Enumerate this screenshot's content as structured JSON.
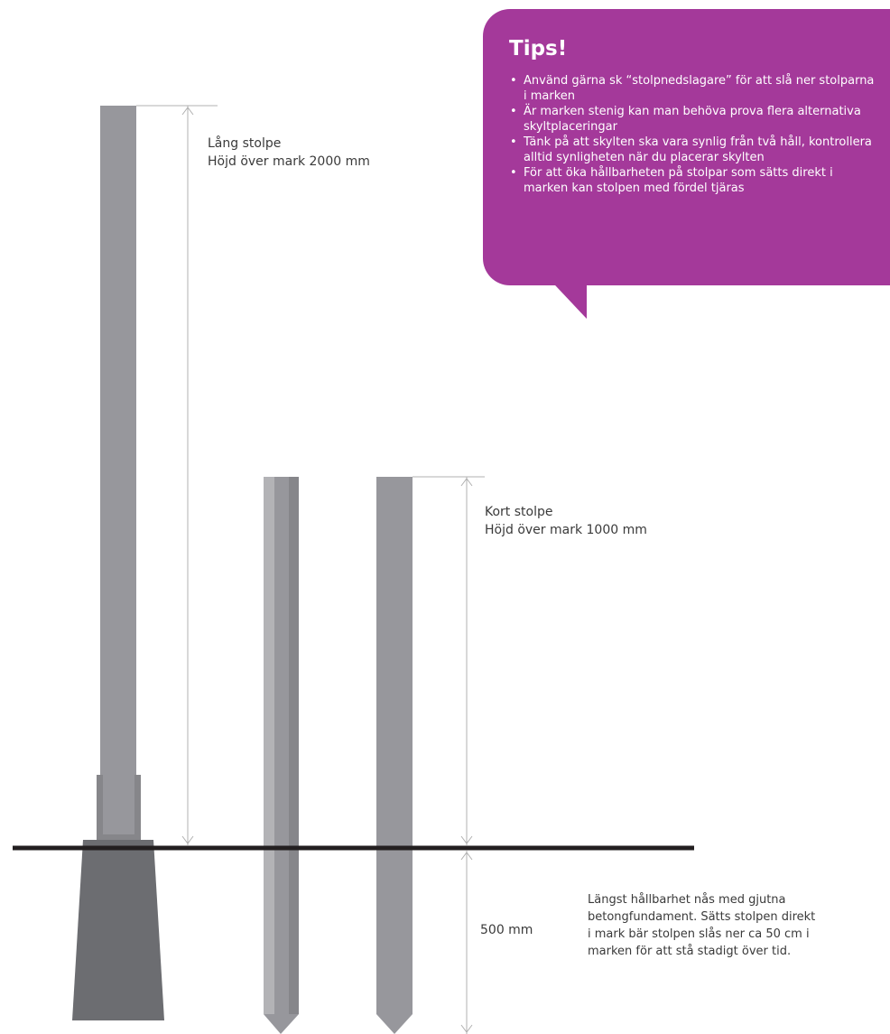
{
  "tips": {
    "title": "Tips!",
    "items": [
      "Använd gärna sk “stolpnedslagare” för att slå ner stolparna i marken",
      "Är marken stenig kan man behöva prova flera alternativa skyltplaceringar",
      "Tänk på att skylten ska vara synlig från två håll, kontrollera alltid synligheten när du placerar skylten",
      "För att öka hållbarheten på stolpar som sätts direkt i marken kan stolpen med fördel tjäras"
    ]
  },
  "long_post": {
    "name": "Lång stolpe",
    "height": "Höjd över mark 2000 mm"
  },
  "short_post": {
    "name": "Kort stolpe",
    "height": "Höjd över mark 1000 mm"
  },
  "below_ground": {
    "depth": "500 mm",
    "note": [
      "Längst hållbarhet nås med gjutna",
      "betongfundament. Sätts stolpen direkt",
      "i mark bär stolpen slås ner ca 50 cm i",
      "marken för att stå stadigt  över tid."
    ]
  },
  "colors": {
    "tips_bg": "#a4399a",
    "post": "#97979c",
    "post_dark": "#86868a",
    "post_light": "#b3b3b6",
    "foundation": "#6c6d71",
    "ground": "#231f20",
    "dimension": "#b0b0b0"
  }
}
